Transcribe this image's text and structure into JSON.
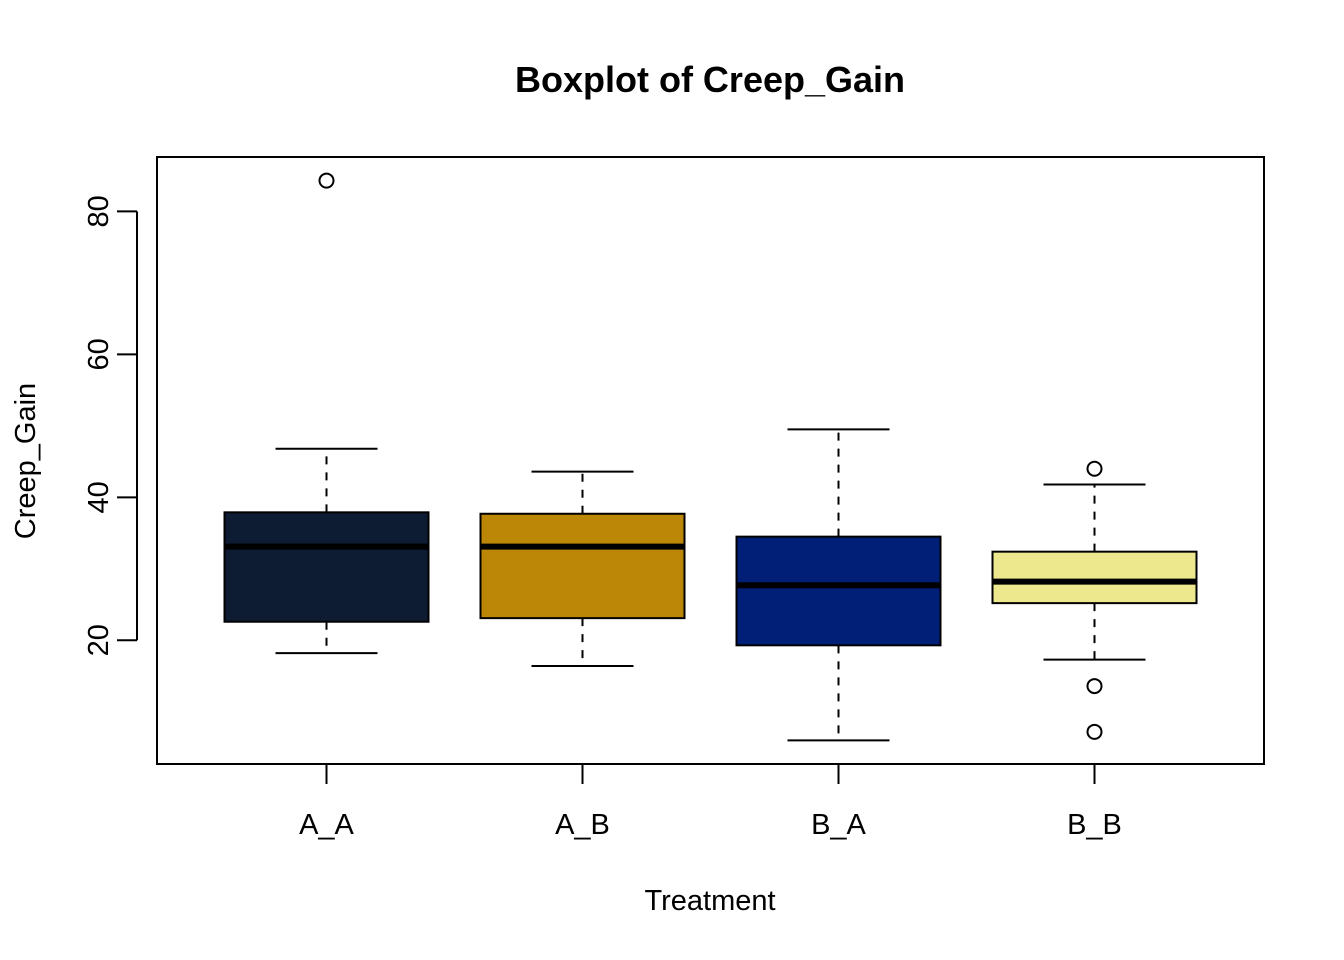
{
  "chart_data": {
    "type": "boxplot",
    "title": "Boxplot of Creep_Gain",
    "xlabel": "Treatment",
    "ylabel": "Creep_Gain",
    "ylim": [
      2.7,
      87.6
    ],
    "yticks": [
      20,
      40,
      60,
      80
    ],
    "grid": false,
    "categories": [
      "A_A",
      "A_B",
      "B_A",
      "B_B"
    ],
    "boxes": [
      {
        "category": "A_A",
        "whisker_low": 18.2,
        "q1": 22.6,
        "median": 33.1,
        "q3": 37.9,
        "whisker_high": 46.8,
        "outliers": [
          84.3
        ],
        "color": "#0d1b33"
      },
      {
        "category": "A_B",
        "whisker_low": 16.4,
        "q1": 23.1,
        "median": 33.1,
        "q3": 37.7,
        "whisker_high": 43.6,
        "outliers": [],
        "color": "#bc8607"
      },
      {
        "category": "B_A",
        "whisker_low": 6.0,
        "q1": 19.3,
        "median": 27.7,
        "q3": 34.5,
        "whisker_high": 49.5,
        "outliers": [],
        "color": "#021f78"
      },
      {
        "category": "B_B",
        "whisker_low": 17.3,
        "q1": 25.2,
        "median": 28.2,
        "q3": 32.4,
        "whisker_high": 41.8,
        "outliers": [
          44.0,
          13.6,
          7.2
        ],
        "color": "#ede88d"
      }
    ]
  }
}
